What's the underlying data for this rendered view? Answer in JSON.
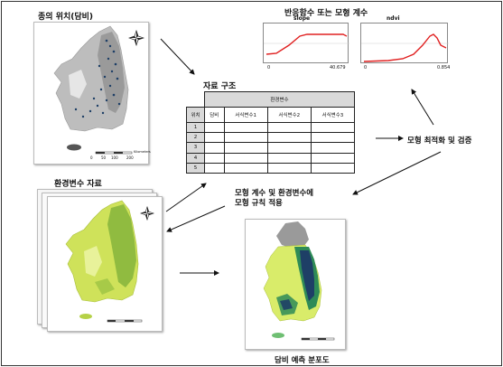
{
  "labels": {
    "occurrence_title": "종의 위치(담비)",
    "response_title": "반응함수 또는 모형 계수",
    "table_title": "자료 구조",
    "optimization": "모형 최적화 및 검증",
    "env_title": "환경변수 자료",
    "apply_line1": "모형 계수 및 환경변수에",
    "apply_line2": "모형 규칙 적용",
    "prediction_title": "담비 예측 분포도"
  },
  "map_text": {
    "scale_ticks": [
      "0",
      "50",
      "100",
      "200"
    ],
    "scale_unit": "Kilometers",
    "compass_n": "N"
  },
  "table": {
    "group_header": "환경변수",
    "row_header": "위치",
    "col_response": "담비",
    "env_cols": [
      "서식변수1",
      "서식변수2",
      "서식변수3"
    ],
    "rows": [
      "1",
      "2",
      "3",
      "4",
      "5"
    ]
  },
  "plots": [
    {
      "title": "slope",
      "x_min": "0",
      "x_max": "40.679"
    },
    {
      "title": "ndvi",
      "x_min": "0",
      "x_max": "0.854"
    }
  ],
  "colors": {
    "curve": "#e02020",
    "habitat_high": "#1e3f66",
    "habitat_mid": "#2e8b57",
    "habitat_low": "#d9ec6a",
    "terrain": "#9a9a9a"
  }
}
